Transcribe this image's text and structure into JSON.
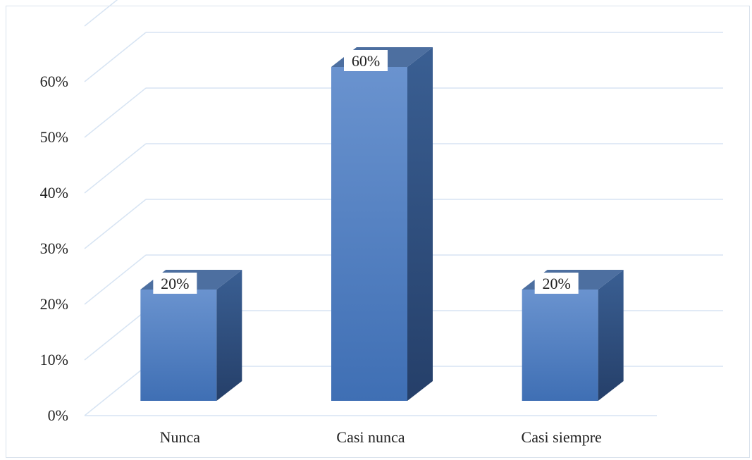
{
  "chart_data": {
    "type": "bar",
    "style": "3d-column",
    "categories": [
      "Nunca",
      "Casi nunca",
      "Casi siempre"
    ],
    "values": [
      20,
      60,
      20
    ],
    "data_labels": [
      "20%",
      "60%",
      "20%"
    ],
    "yticks": [
      "0%",
      "10%",
      "20%",
      "30%",
      "40%",
      "50%",
      "60%"
    ],
    "ylim": [
      0,
      70
    ],
    "grid": true,
    "colors": {
      "bar_front_top": "#6a93cf",
      "bar_front_bottom": "#3f6fb4",
      "bar_side": "#2e4f80",
      "bar_top": "#4d6fa0",
      "grid": "#d7e4f3"
    }
  }
}
